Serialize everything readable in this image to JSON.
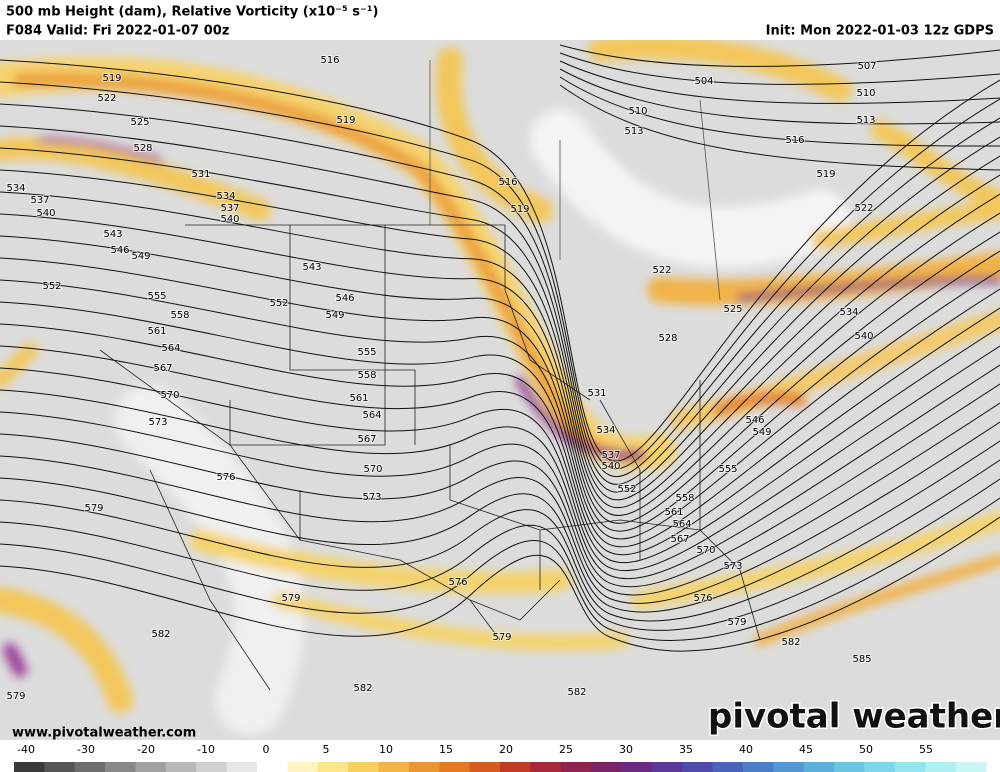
{
  "header": {
    "title": "500 mb Height (dam), Relative Vorticity (x10⁻⁵ s⁻¹)",
    "valid": "F084 Valid: Fri 2022-01-07 00z",
    "init": "Init: Mon 2022-01-03 12z GDPS"
  },
  "map": {
    "height_contour_labels": [
      519,
      522,
      525,
      528,
      531,
      534,
      537,
      540,
      534,
      537,
      540,
      543,
      546,
      549,
      552,
      555,
      558,
      561,
      564,
      567,
      570,
      573,
      576,
      579,
      579,
      582,
      579,
      582,
      582,
      579,
      576,
      573,
      570,
      567,
      564,
      561,
      558,
      555,
      552,
      549,
      546,
      543,
      519,
      516,
      516,
      519,
      504,
      510,
      513,
      516,
      519,
      522,
      507,
      510,
      513,
      522,
      525,
      528,
      531,
      534,
      537,
      540,
      552,
      555,
      558,
      561,
      564,
      567,
      570,
      573,
      576,
      579,
      582,
      585,
      546,
      549,
      534,
      540
    ]
  },
  "footer": {
    "website": "www.pivotalweather.com",
    "logo": "pivotal weather",
    "colorbar_ticks": [
      -40,
      -30,
      -20,
      -10,
      0,
      5,
      10,
      15,
      20,
      25,
      30,
      35,
      40,
      45,
      50,
      55
    ]
  }
}
